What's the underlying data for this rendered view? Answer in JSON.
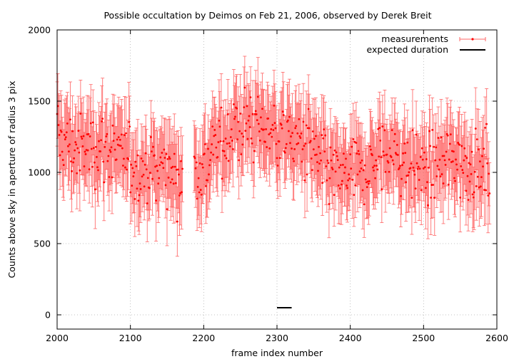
{
  "chart_data": {
    "type": "scatter",
    "title": "Possible occultation by Deimos on Feb 21, 2006, observed by Derek Breit",
    "xlabel": "frame index number",
    "ylabel": "Counts above sky in aperture of radius 3 pix",
    "xlim": [
      2000,
      2600
    ],
    "ylim": [
      -100,
      2000
    ],
    "x_ticks": [
      2000,
      2100,
      2200,
      2300,
      2400,
      2500,
      2600
    ],
    "y_ticks": [
      0,
      500,
      1000,
      1500,
      2000
    ],
    "grid": true,
    "legend_position": "top-right",
    "colors": {
      "measurements": "#ff0000",
      "error_bars": "#ff6666",
      "expected": "#000000"
    },
    "series": [
      {
        "name": "measurements",
        "style": "points-with-error-bars",
        "x_start": 2000,
        "x_step": 1,
        "x_gaps": [
          [
            2172,
            2186
          ]
        ],
        "error_bar": 250,
        "profile_x": [
          2000,
          2030,
          2060,
          2090,
          2120,
          2150,
          2180,
          2200,
          2230,
          2260,
          2290,
          2310,
          2340,
          2370,
          2390,
          2420,
          2450,
          2480,
          2510,
          2540,
          2570,
          2590
        ],
        "profile_y": [
          1250,
          1150,
          1200,
          1100,
          1000,
          1050,
          950,
          1050,
          1250,
          1350,
          1300,
          1250,
          1200,
          1000,
          950,
          1000,
          1150,
          1050,
          1000,
          1100,
          1050,
          1000
        ],
        "scatter": 200
      },
      {
        "name": "expected duration",
        "style": "segment",
        "x": [
          2300,
          2320
        ],
        "y": [
          50,
          50
        ]
      }
    ]
  }
}
